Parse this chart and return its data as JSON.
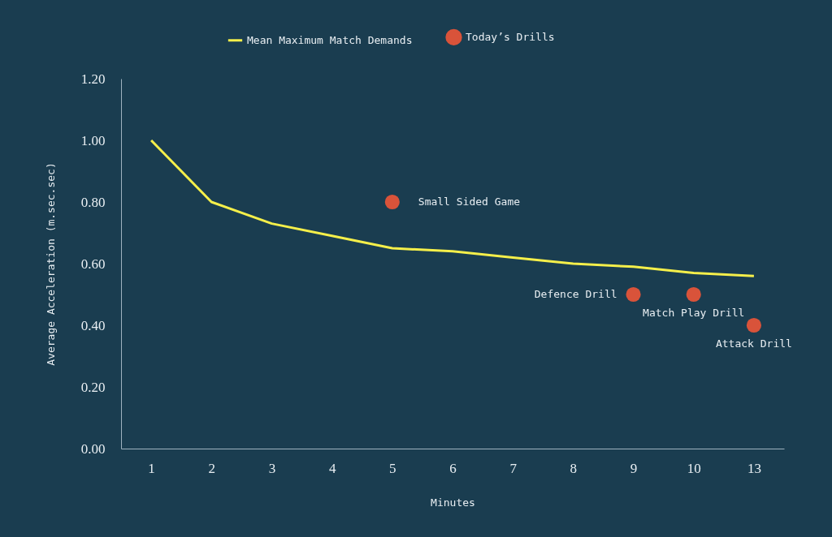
{
  "chart_data": {
    "type": "line",
    "xlabel": "Minutes",
    "ylabel": "Average Acceleration (m.sec.sec)",
    "categories": [
      "1",
      "2",
      "3",
      "4",
      "5",
      "6",
      "7",
      "8",
      "9",
      "10",
      "13"
    ],
    "series": [
      {
        "name": "Mean Maximum Match Demands",
        "color": "#f5ef4a",
        "values": [
          1.0,
          0.8,
          0.73,
          0.69,
          0.65,
          0.64,
          0.62,
          0.6,
          0.59,
          0.57,
          0.56
        ]
      },
      {
        "name": "Today’s Drills",
        "type": "scatter",
        "color": "#d9533a",
        "x": [
          "5",
          "9",
          "10",
          "13"
        ],
        "values": [
          0.8,
          0.5,
          0.5,
          0.4
        ]
      }
    ],
    "annotations": [
      {
        "text": "Small Sided Game",
        "x": "5",
        "y": 0.8
      },
      {
        "text": "Defence Drill",
        "x": "9",
        "y": 0.5
      },
      {
        "text": "Match Play Drill",
        "x": "10",
        "y": 0.5
      },
      {
        "text": "Attack Drill",
        "x": "13",
        "y": 0.4
      }
    ],
    "ylim": [
      0,
      1.2
    ],
    "yticks": [
      {
        "value": 0,
        "label": "0.00"
      },
      {
        "value": 0.2,
        "label": "0.20"
      },
      {
        "value": 0.4,
        "label": "0.40"
      },
      {
        "value": 0.6,
        "label": "0.60"
      },
      {
        "value": 0.8,
        "label": "0.80"
      },
      {
        "value": 1.0,
        "label": "1.00"
      },
      {
        "value": 1.2,
        "label": "1.20"
      }
    ],
    "grid": false,
    "legend": "top",
    "line_style": "solid"
  }
}
